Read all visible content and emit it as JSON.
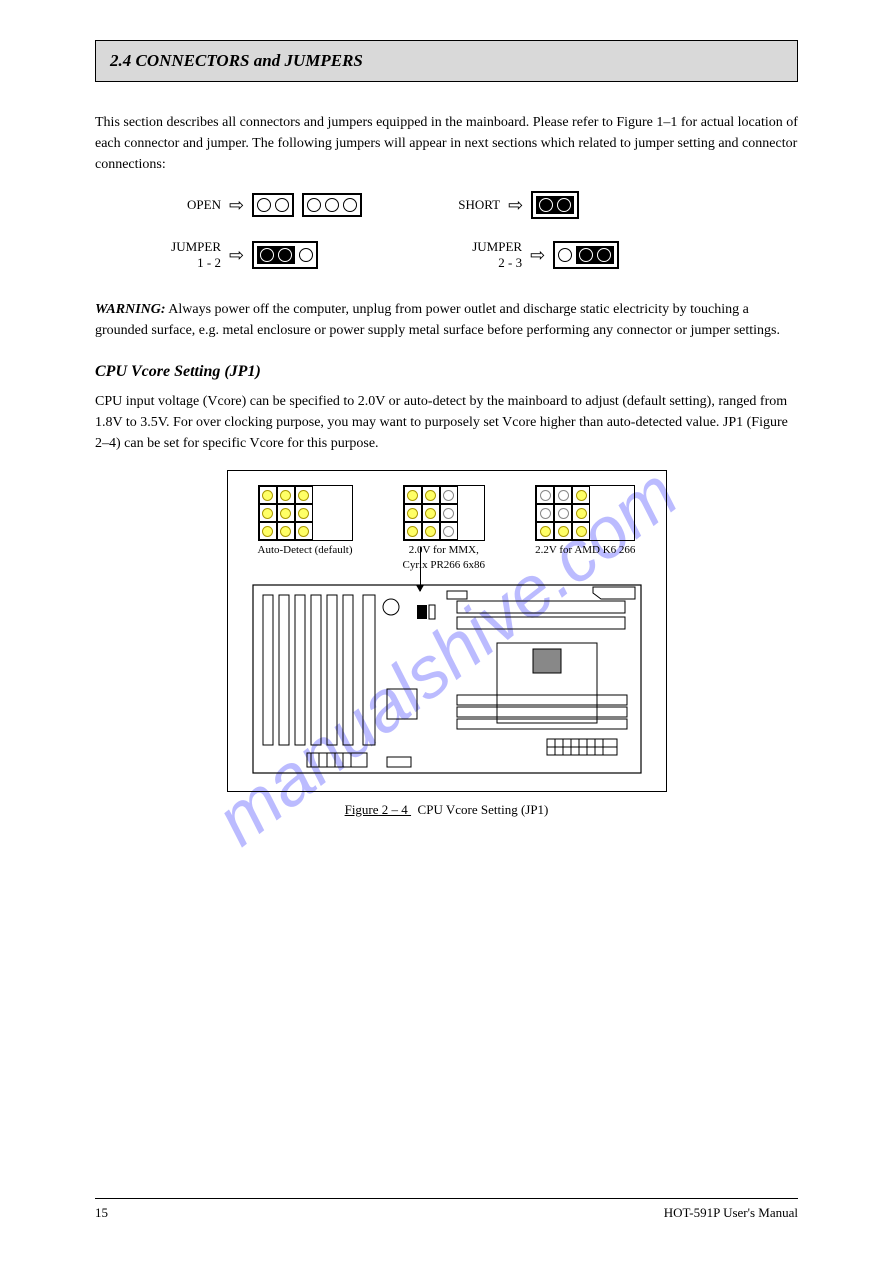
{
  "watermark": "manualshive.com",
  "header": {
    "section_number": "2.4",
    "section_title": "CONNECTORS and JUMPERS"
  },
  "intro_paragraph": "This section describes all connectors and jumpers equipped in the mainboard. Please refer to Figure 1–1 for actual location of each connector and jumper. The following jumpers will appear in next sections which related to jumper setting and connector connections:",
  "jumper_key": {
    "open_label": "OPEN",
    "short_label": "SHORT",
    "jumper12_label": "JUMPER\n1 - 2",
    "jumper23_label": "JUMPER\n2 - 3"
  },
  "warning": {
    "label": "WARNING:",
    "text": " Always power off the computer, unplug from power outlet and discharge static electricity by touching a grounded surface, e.g. metal enclosure or power supply metal surface before performing any connector or jumper settings."
  },
  "cpu_section": {
    "title": "CPU Vcore Setting (JP1)",
    "text": "CPU input voltage (Vcore) can be specified to 2.0V or auto-detect by the mainboard to adjust (default setting), ranged from 1.8V to 3.5V. For over clocking purpose, you may want to purposely set Vcore higher than auto-detected value. JP1 (Figure 2–4) can be set for specific Vcore for this purpose."
  },
  "grid_labels": {
    "a": "Auto-Detect (default)",
    "b1": "2.0V for MMX,",
    "b2": "Cyrix PR266 6x86",
    "c": "2.2V for AMD K6 266"
  },
  "jp_pins": {
    "auto": [
      "y",
      "y",
      "y",
      "y",
      "y",
      "y",
      "y",
      "y",
      "y"
    ],
    "v20": [
      "y",
      "y",
      "w",
      "y",
      "y",
      "w",
      "y",
      "y",
      "w"
    ],
    "v22": [
      "w",
      "w",
      "y",
      "w",
      "w",
      "y",
      "y",
      "y",
      "y"
    ]
  },
  "figure": {
    "prefix": "Figure",
    "num_text": " 2 – 4 ",
    "caption": "CPU Vcore Setting (JP1)"
  },
  "footer": {
    "page": "15",
    "doc": "HOT-591P User's Manual"
  },
  "colors": {
    "header_bg": "#d9d9d9",
    "jp_yellow": "#ffff66",
    "watermark": "#6b6bff"
  }
}
